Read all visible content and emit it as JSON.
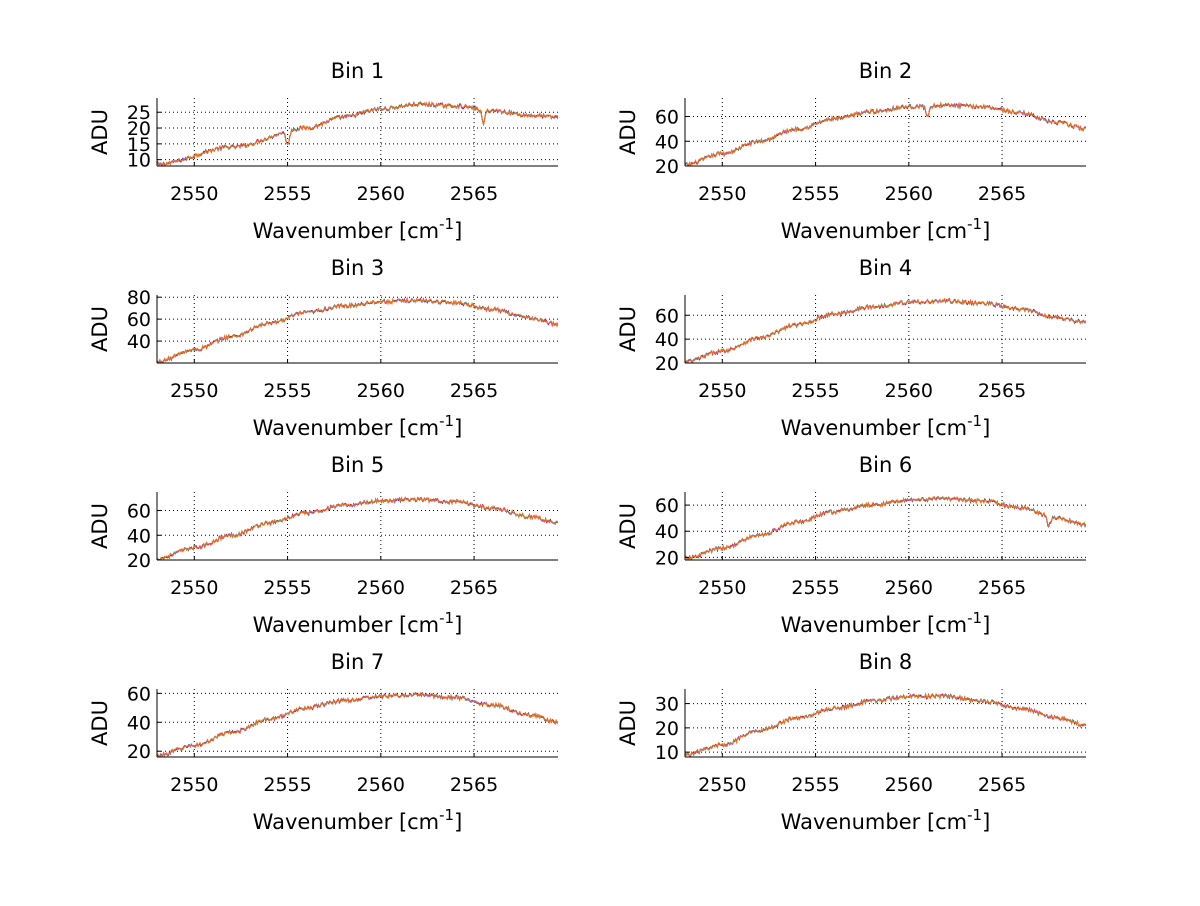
{
  "figure": {
    "xlabel_prefix": "Wavenumber [cm",
    "xlabel_sup": "-1",
    "xlabel_suffix": "]",
    "ylabel": "ADU"
  },
  "colors": {
    "blue": "#0000ff",
    "green": "#008000",
    "red": "#ff0000",
    "cyan": "#00bfbf",
    "magenta": "#bf00bf",
    "orange": "#e8731a"
  },
  "chart_data": [
    {
      "type": "line",
      "title": "Bin 1",
      "xlabel": "Wavenumber [cm-1]",
      "ylabel": "ADU",
      "xlim": [
        2548,
        2569.5
      ],
      "ylim": [
        8,
        29.5
      ],
      "xticks": [
        2550,
        2555,
        2560,
        2565
      ],
      "yticks": [
        10,
        15,
        20,
        25
      ],
      "grid": true,
      "profile": {
        "x": [
          2548,
          2552,
          2556,
          2558,
          2560,
          2562,
          2564,
          2566,
          2568,
          2569.5
        ],
        "y": [
          8.5,
          14,
          20,
          23.5,
          26,
          27.5,
          27,
          25.5,
          24,
          23.5
        ]
      },
      "dips": [
        {
          "x": 2555,
          "y": 14.5
        },
        {
          "x": 2565.5,
          "y": 21.5
        }
      ]
    },
    {
      "type": "line",
      "title": "Bin 2",
      "xlabel": "Wavenumber [cm-1]",
      "ylabel": "ADU",
      "xlim": [
        2548,
        2569.5
      ],
      "ylim": [
        20,
        75
      ],
      "xticks": [
        2550,
        2555,
        2560,
        2565
      ],
      "yticks": [
        20,
        40,
        60
      ],
      "grid": true,
      "profile": {
        "x": [
          2548,
          2550,
          2552,
          2554,
          2556,
          2558,
          2560,
          2562,
          2564,
          2566,
          2568,
          2569.5
        ],
        "y": [
          21,
          30,
          40,
          50,
          58,
          64,
          68,
          69,
          68,
          63,
          55,
          50
        ]
      },
      "dips": [
        {
          "x": 2561,
          "y": 60
        }
      ]
    },
    {
      "type": "line",
      "title": "Bin 3",
      "xlabel": "Wavenumber [cm-1]",
      "ylabel": "ADU",
      "xlim": [
        2548,
        2569.5
      ],
      "ylim": [
        20,
        82
      ],
      "xticks": [
        2550,
        2555,
        2560,
        2565
      ],
      "yticks": [
        40,
        60,
        80
      ],
      "grid": true,
      "profile": {
        "x": [
          2548,
          2550,
          2552,
          2554,
          2556,
          2558,
          2560,
          2562,
          2564,
          2566,
          2568,
          2569.5
        ],
        "y": [
          21,
          32,
          44,
          56,
          66,
          72,
          76,
          77,
          75,
          69,
          61,
          55
        ]
      },
      "dips": []
    },
    {
      "type": "line",
      "title": "Bin 4",
      "xlabel": "Wavenumber [cm-1]",
      "ylabel": "ADU",
      "xlim": [
        2548,
        2569.5
      ],
      "ylim": [
        20,
        77
      ],
      "xticks": [
        2550,
        2555,
        2560,
        2565
      ],
      "yticks": [
        20,
        40,
        60
      ],
      "grid": true,
      "profile": {
        "x": [
          2548,
          2550,
          2552,
          2554,
          2556,
          2558,
          2560,
          2562,
          2564,
          2566,
          2568,
          2569.5
        ],
        "y": [
          21,
          30,
          41,
          52,
          61,
          67,
          71,
          72,
          70,
          65,
          58,
          54
        ]
      },
      "dips": []
    },
    {
      "type": "line",
      "title": "Bin 5",
      "xlabel": "Wavenumber [cm-1]",
      "ylabel": "ADU",
      "xlim": [
        2548,
        2569.5
      ],
      "ylim": [
        20,
        75
      ],
      "xticks": [
        2550,
        2555,
        2560,
        2565
      ],
      "yticks": [
        20,
        40,
        60
      ],
      "grid": true,
      "profile": {
        "x": [
          2548,
          2550,
          2552,
          2554,
          2556,
          2558,
          2560,
          2562,
          2564,
          2566,
          2568,
          2569.5
        ],
        "y": [
          21,
          30,
          40,
          50,
          58,
          64,
          68,
          69,
          67,
          62,
          55,
          50
        ]
      },
      "dips": []
    },
    {
      "type": "line",
      "title": "Bin 6",
      "xlabel": "Wavenumber [cm-1]",
      "ylabel": "ADU",
      "xlim": [
        2548,
        2569.5
      ],
      "ylim": [
        18,
        70
      ],
      "xticks": [
        2550,
        2555,
        2560,
        2565
      ],
      "yticks": [
        20,
        40,
        60
      ],
      "grid": true,
      "profile": {
        "x": [
          2548,
          2550,
          2552,
          2554,
          2556,
          2558,
          2560,
          2562,
          2564,
          2566,
          2568,
          2569.5
        ],
        "y": [
          19,
          27,
          37,
          47,
          55,
          60,
          64,
          65,
          63,
          58,
          50,
          45
        ]
      },
      "dips": [
        {
          "x": 2567.5,
          "y": 44
        }
      ]
    },
    {
      "type": "line",
      "title": "Bin 7",
      "xlabel": "Wavenumber [cm-1]",
      "ylabel": "ADU",
      "xlim": [
        2548,
        2569.5
      ],
      "ylim": [
        16,
        63
      ],
      "xticks": [
        2550,
        2555,
        2560,
        2565
      ],
      "yticks": [
        20,
        40,
        60
      ],
      "grid": true,
      "profile": {
        "x": [
          2548,
          2550,
          2552,
          2554,
          2556,
          2558,
          2560,
          2562,
          2564,
          2566,
          2568,
          2569.5
        ],
        "y": [
          17,
          24,
          33,
          42,
          50,
          55,
          58,
          59,
          57,
          52,
          45,
          40
        ]
      },
      "dips": []
    },
    {
      "type": "line",
      "title": "Bin 8",
      "xlabel": "Wavenumber [cm-1]",
      "ylabel": "ADU",
      "xlim": [
        2548,
        2569.5
      ],
      "ylim": [
        8,
        36
      ],
      "xticks": [
        2550,
        2555,
        2560,
        2565
      ],
      "yticks": [
        10,
        20,
        30
      ],
      "grid": true,
      "profile": {
        "x": [
          2548,
          2550,
          2552,
          2554,
          2556,
          2558,
          2560,
          2562,
          2564,
          2566,
          2568,
          2569.5
        ],
        "y": [
          9,
          13,
          19,
          24,
          28,
          31,
          33,
          33,
          31,
          28,
          24,
          21
        ]
      },
      "dips": []
    }
  ]
}
